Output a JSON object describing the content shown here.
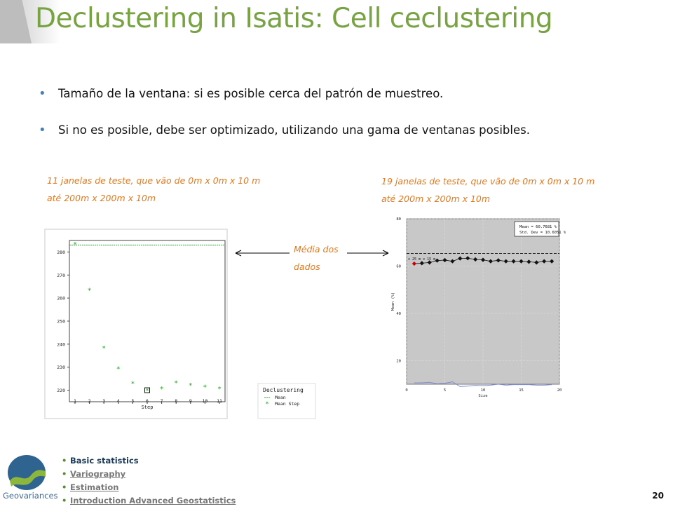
{
  "title": "Declustering in Isatis: Cell ceclustering",
  "bullets": [
    "Tamaño de la ventana: si es posible cerca del patrón de muestreo.",
    "Si no es posible, debe ser optimizado, utilizando una gama de ventanas posibles."
  ],
  "left_caption": [
    "11 janelas de teste, que vão de 0m x 0m x 10 m",
    "até 200m x 200m x 10m"
  ],
  "right_caption": [
    "19 janelas de teste, que vão de 0m x 0m x 10 m",
    "até 200m x 200m x 10m"
  ],
  "media_label": [
    "Média dos",
    "dados"
  ],
  "left_legend": {
    "title": "Declustering",
    "mean": "Mean",
    "mean_step": "Mean Step"
  },
  "right_stats": {
    "mean": "Mean = 60.7681 %",
    "std": "Std. Dev = 10.6051 %",
    "point_label": "x 25 m x 15 m"
  },
  "colors": {
    "title_green": "#77a342",
    "caption_orange": "#e07a1f",
    "series_green": "#22aa22",
    "selected_red": "#cc0000",
    "std_blue": "#7f8ed6"
  },
  "chart_data": [
    {
      "type": "scatter",
      "xlabel": "Step",
      "ylabel": "",
      "x": [
        1,
        2,
        3,
        4,
        5,
        6,
        7,
        8,
        9,
        10,
        11
      ],
      "ylim": [
        215,
        285
      ],
      "xticks": [
        1,
        2,
        3,
        4,
        5,
        6,
        7,
        8,
        9,
        10,
        11
      ],
      "yticks": [
        220,
        230,
        240,
        250,
        260,
        270,
        280
      ],
      "series": [
        {
          "name": "Mean Step",
          "values": [
            283.5,
            263.5,
            238.5,
            229.5,
            223,
            220,
            220.8,
            223.3,
            222.3,
            221.5,
            220.8
          ]
        },
        {
          "name": "Mean",
          "values": [
            283,
            283,
            283,
            283,
            283,
            283,
            283,
            283,
            283,
            283,
            283
          ]
        }
      ],
      "selected_index": 5,
      "legend": "bottom-right",
      "grid": false
    },
    {
      "type": "line",
      "xlabel": "Size",
      "ylabel": "Mean (%)",
      "xlim": [
        0,
        20
      ],
      "ylim": [
        10,
        80
      ],
      "xticks": [
        0,
        5,
        10,
        15,
        20
      ],
      "yticks": [
        20,
        40,
        60,
        80
      ],
      "x": [
        1,
        2,
        3,
        4,
        5,
        6,
        7,
        8,
        9,
        10,
        11,
        12,
        13,
        14,
        15,
        16,
        17,
        18,
        19
      ],
      "series": [
        {
          "name": "Mean",
          "values": [
            61,
            61.2,
            61.5,
            62.3,
            62.5,
            62,
            63.2,
            63.3,
            62.8,
            62.6,
            62,
            62.4,
            62,
            62,
            62,
            61.8,
            61.5,
            62,
            62
          ]
        },
        {
          "name": "Std. Dev",
          "values": [
            10.6,
            10.6,
            10.8,
            10.2,
            10.4,
            11,
            9,
            9.2,
            9.5,
            9.4,
            9.6,
            10,
            9.6,
            9.8,
            9.8,
            9.8,
            9.6,
            9.6,
            9.8
          ]
        }
      ],
      "reference_mean": 65.3,
      "selected_index": 0,
      "legend": "top-right",
      "grid": true
    }
  ],
  "footer": {
    "items": [
      "Basic statistics",
      "Variography",
      "Estimation",
      "Introduction Advanced Geostatistics"
    ],
    "brand": "Geovariances",
    "page_number": "20"
  }
}
